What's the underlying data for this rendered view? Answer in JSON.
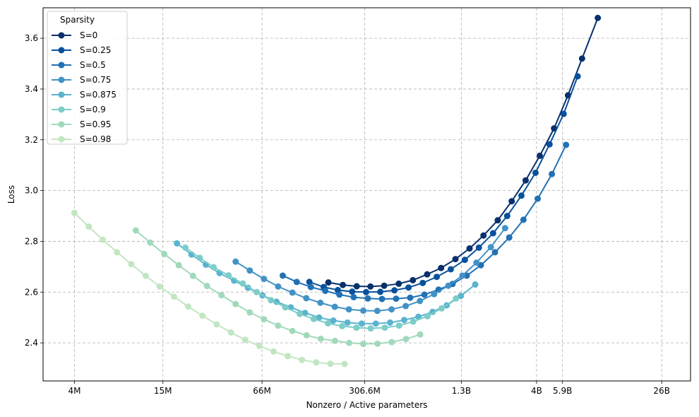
{
  "chart_data": {
    "type": "line",
    "title": "",
    "xlabel": "Nonzero / Active parameters",
    "ylabel": "Loss",
    "x_scale": "log",
    "x_ticks": [
      {
        "value": 4000000,
        "label": "4M"
      },
      {
        "value": 15000000,
        "label": "15M"
      },
      {
        "value": 66000000,
        "label": "66M"
      },
      {
        "value": 306600000,
        "label": "306.6M"
      },
      {
        "value": 1300000000,
        "label": "1.3B"
      },
      {
        "value": 4000000000,
        "label": "4B"
      },
      {
        "value": 5900000000,
        "label": "5.9B"
      },
      {
        "value": 26000000000,
        "label": "26B"
      }
    ],
    "y_ticks": [
      2.4,
      2.6,
      2.8,
      3.0,
      3.2,
      3.4,
      3.6
    ],
    "xlim": [
      2500000,
      40000000000
    ],
    "ylim": [
      2.25,
      3.72
    ],
    "grid": true,
    "legend": {
      "title": "Sparsity",
      "position": "top-left"
    },
    "series": [
      {
        "name": "S=0",
        "color": "#08306b",
        "points": [
          [
            178000000,
            2.638
          ],
          [
            221000000,
            2.628
          ],
          [
            272000000,
            2.623
          ],
          [
            334000000,
            2.622
          ],
          [
            410000000,
            2.625
          ],
          [
            510000000,
            2.633
          ],
          [
            630000000,
            2.647
          ],
          [
            780000000,
            2.67
          ],
          [
            960000000,
            2.695
          ],
          [
            1190000000,
            2.73
          ],
          [
            1470000000,
            2.772
          ],
          [
            1810000000,
            2.823
          ],
          [
            2240000000,
            2.883
          ],
          [
            2760000000,
            2.958
          ],
          [
            3400000000,
            3.04
          ],
          [
            4200000000,
            3.137
          ],
          [
            5200000000,
            3.245
          ],
          [
            6400000000,
            3.375
          ],
          [
            7900000000,
            3.52
          ],
          [
            10000000000,
            3.68
          ]
        ]
      },
      {
        "name": "S=0.25",
        "color": "#08519c",
        "points": [
          [
            134000000,
            2.64
          ],
          [
            166000000,
            2.62
          ],
          [
            205000000,
            2.608
          ],
          [
            254000000,
            2.602
          ],
          [
            313000000,
            2.6
          ],
          [
            387000000,
            2.601
          ],
          [
            478000000,
            2.607
          ],
          [
            590000000,
            2.618
          ],
          [
            730000000,
            2.636
          ],
          [
            900000000,
            2.66
          ],
          [
            1110000000,
            2.69
          ],
          [
            1370000000,
            2.727
          ],
          [
            1690000000,
            2.775
          ],
          [
            2090000000,
            2.832
          ],
          [
            2580000000,
            2.9
          ],
          [
            3190000000,
            2.98
          ],
          [
            3940000000,
            3.07
          ],
          [
            4860000000,
            3.182
          ],
          [
            6000000000,
            3.302
          ],
          [
            7400000000,
            3.45
          ]
        ]
      },
      {
        "name": "S=0.5",
        "color": "#2171b5",
        "points": [
          [
            90000000,
            2.665
          ],
          [
            111000000,
            2.64
          ],
          [
            137000000,
            2.62
          ],
          [
            170000000,
            2.605
          ],
          [
            210000000,
            2.59
          ],
          [
            260000000,
            2.58
          ],
          [
            321000000,
            2.575
          ],
          [
            397000000,
            2.573
          ],
          [
            490000000,
            2.574
          ],
          [
            605000000,
            2.578
          ],
          [
            748000000,
            2.59
          ],
          [
            925000000,
            2.61
          ],
          [
            1140000000,
            2.632
          ],
          [
            1410000000,
            2.665
          ],
          [
            1740000000,
            2.706
          ],
          [
            2150000000,
            2.757
          ],
          [
            2660000000,
            2.815
          ],
          [
            3290000000,
            2.885
          ],
          [
            4070000000,
            2.968
          ],
          [
            5030000000,
            3.065
          ],
          [
            6220000000,
            3.18
          ]
        ]
      },
      {
        "name": "S=0.75",
        "color": "#4292c6",
        "points": [
          [
            44500000,
            2.72
          ],
          [
            55000000,
            2.685
          ],
          [
            68000000,
            2.652
          ],
          [
            84000000,
            2.622
          ],
          [
            104000000,
            2.598
          ],
          [
            128000000,
            2.576
          ],
          [
            158000000,
            2.558
          ],
          [
            196000000,
            2.542
          ],
          [
            242000000,
            2.532
          ],
          [
            300000000,
            2.527
          ],
          [
            370000000,
            2.526
          ],
          [
            458000000,
            2.532
          ],
          [
            566000000,
            2.545
          ],
          [
            700000000,
            2.565
          ],
          [
            865000000,
            2.592
          ],
          [
            1070000000,
            2.625
          ],
          [
            1320000000,
            2.665
          ],
          [
            1630000000,
            2.716
          ],
          [
            2020000000,
            2.777
          ],
          [
            2500000000,
            2.852
          ]
        ]
      },
      {
        "name": "S=0.875",
        "color": "#5ab4cf",
        "points": [
          [
            18500000,
            2.792
          ],
          [
            23000000,
            2.748
          ],
          [
            28500000,
            2.708
          ],
          [
            35000000,
            2.675
          ],
          [
            43500000,
            2.645
          ],
          [
            53500000,
            2.617
          ],
          [
            66500000,
            2.587
          ],
          [
            82000000,
            2.562
          ],
          [
            101500000,
            2.54
          ],
          [
            125500000,
            2.518
          ],
          [
            155000000,
            2.5
          ],
          [
            191500000,
            2.488
          ],
          [
            237000000,
            2.48
          ],
          [
            293000000,
            2.476
          ],
          [
            362000000,
            2.476
          ],
          [
            448000000,
            2.48
          ],
          [
            553000000,
            2.49
          ],
          [
            684000000,
            2.503
          ],
          [
            846000000,
            2.522
          ],
          [
            1045000000,
            2.548
          ],
          [
            1290000000,
            2.585
          ],
          [
            1600000000,
            2.63
          ]
        ]
      },
      {
        "name": "S=0.9",
        "color": "#7dcdc8",
        "points": [
          [
            21000000,
            2.775
          ],
          [
            26000000,
            2.735
          ],
          [
            32000000,
            2.698
          ],
          [
            40000000,
            2.666
          ],
          [
            49500000,
            2.634
          ],
          [
            61000000,
            2.6
          ],
          [
            75500000,
            2.568
          ],
          [
            93500000,
            2.54
          ],
          [
            116000000,
            2.514
          ],
          [
            143000000,
            2.494
          ],
          [
            177000000,
            2.477
          ],
          [
            219000000,
            2.466
          ],
          [
            271000000,
            2.46
          ],
          [
            335000000,
            2.457
          ],
          [
            414000000,
            2.46
          ],
          [
            512000000,
            2.468
          ],
          [
            633000000,
            2.484
          ],
          [
            783000000,
            2.505
          ],
          [
            968000000,
            2.536
          ],
          [
            1200000000,
            2.575
          ]
        ]
      },
      {
        "name": "S=0.95",
        "color": "#a1d9bb",
        "points": [
          [
            10000000,
            2.843
          ],
          [
            12400000,
            2.795
          ],
          [
            15300000,
            2.75
          ],
          [
            19000000,
            2.706
          ],
          [
            23500000,
            2.664
          ],
          [
            29000000,
            2.624
          ],
          [
            36000000,
            2.588
          ],
          [
            44500000,
            2.553
          ],
          [
            55000000,
            2.52
          ],
          [
            68000000,
            2.493
          ],
          [
            84000000,
            2.468
          ],
          [
            104000000,
            2.447
          ],
          [
            128500000,
            2.43
          ],
          [
            159000000,
            2.416
          ],
          [
            196500000,
            2.408
          ],
          [
            243000000,
            2.4
          ],
          [
            300000000,
            2.396
          ],
          [
            371000000,
            2.397
          ],
          [
            459000000,
            2.403
          ],
          [
            568000000,
            2.415
          ],
          [
            702000000,
            2.433
          ]
        ]
      },
      {
        "name": "S=0.98",
        "color": "#c2e6c2",
        "points": [
          [
            4000000,
            2.912
          ],
          [
            4950000,
            2.858
          ],
          [
            6100000,
            2.806
          ],
          [
            7550000,
            2.757
          ],
          [
            9350000,
            2.71
          ],
          [
            11600000,
            2.664
          ],
          [
            14300000,
            2.622
          ],
          [
            17700000,
            2.582
          ],
          [
            21900000,
            2.543
          ],
          [
            27100000,
            2.507
          ],
          [
            33500000,
            2.473
          ],
          [
            41500000,
            2.441
          ],
          [
            51300000,
            2.412
          ],
          [
            63500000,
            2.388
          ],
          [
            78500000,
            2.366
          ],
          [
            97000000,
            2.348
          ],
          [
            120000000,
            2.333
          ],
          [
            148500000,
            2.323
          ],
          [
            183500000,
            2.318
          ],
          [
            227000000,
            2.317
          ]
        ]
      }
    ]
  }
}
